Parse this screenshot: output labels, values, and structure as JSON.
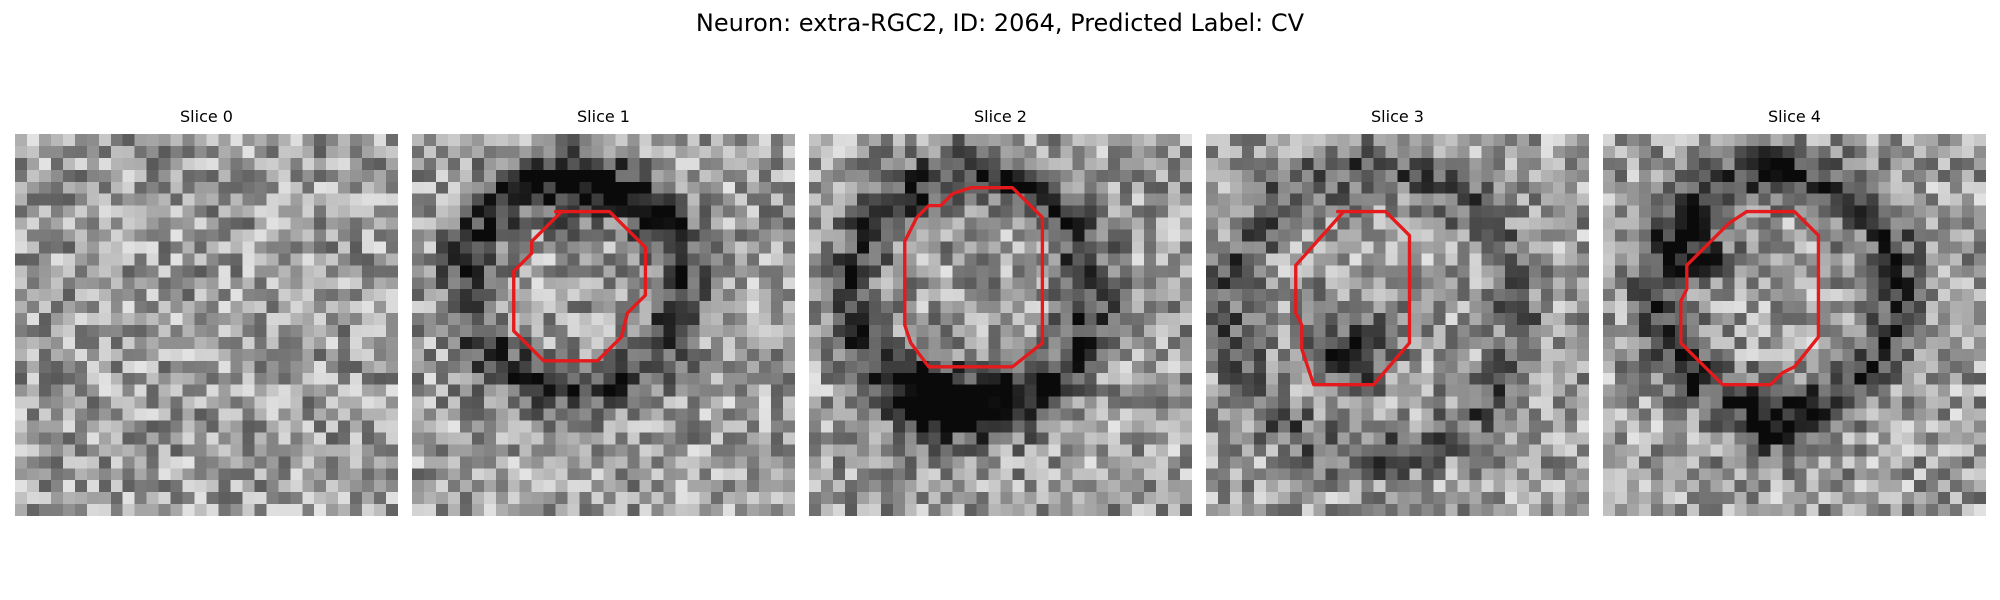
{
  "figure": {
    "title": "Neuron: extra-RGC2, ID: 2064, Predicted Label: CV"
  },
  "colors": {
    "contour": "#e41a1c",
    "background": "#ffffff"
  },
  "panels": [
    {
      "title": "Slice 0",
      "has_contour": false
    },
    {
      "title": "Slice 1",
      "has_contour": true
    },
    {
      "title": "Slice 2",
      "has_contour": true
    },
    {
      "title": "Slice 3",
      "has_contour": true
    },
    {
      "title": "Slice 4",
      "has_contour": true
    }
  ]
}
